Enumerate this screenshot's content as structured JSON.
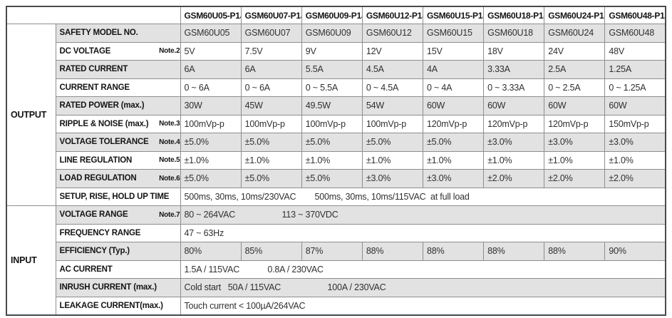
{
  "page": {
    "background": "#ffffff"
  },
  "table": {
    "stripe_color": "#e2e2e2",
    "grid_color": "#8e8e8e",
    "frame_color": "#4a4a4a",
    "corner_label": "",
    "models": [
      "GSM60U05-P1J",
      "GSM60U07-P1J",
      "GSM60U09-P1J",
      "GSM60U12-P1J",
      "GSM60U15-P1J",
      "GSM60U18-P1J",
      "GSM60U24-P1J",
      "GSM60U48-P1J"
    ],
    "sections": [
      {
        "name": "OUTPUT",
        "rows": [
          {
            "label": "SAFETY MODEL NO.",
            "note": "",
            "shade": true,
            "values": [
              "GSM60U05",
              "GSM60U07",
              "GSM60U09",
              "GSM60U12",
              "GSM60U15",
              "GSM60U18",
              "GSM60U24",
              "GSM60U48"
            ]
          },
          {
            "label": "DC VOLTAGE",
            "note": "Note.2",
            "shade": false,
            "values": [
              "5V",
              "7.5V",
              "9V",
              "12V",
              "15V",
              "18V",
              "24V",
              "48V"
            ]
          },
          {
            "label": "RATED CURRENT",
            "note": "",
            "shade": true,
            "values": [
              "6A",
              "6A",
              "5.5A",
              "4.5A",
              "4A",
              "3.33A",
              "2.5A",
              "1.25A"
            ]
          },
          {
            "label": "CURRENT RANGE",
            "note": "",
            "shade": false,
            "values": [
              "0 ~ 6A",
              "0 ~ 6A",
              "0 ~ 5.5A",
              "0 ~ 4.5A",
              "0 ~ 4A",
              "0 ~ 3.33A",
              "0 ~ 2.5A",
              "0 ~ 1.25A"
            ]
          },
          {
            "label": "RATED POWER (max.)",
            "note": "",
            "shade": true,
            "values": [
              "30W",
              "45W",
              "49.5W",
              "54W",
              "60W",
              "60W",
              "60W",
              "60W"
            ]
          },
          {
            "label": "RIPPLE & NOISE (max.)",
            "note": "Note.3",
            "shade": false,
            "values": [
              "100mVp-p",
              "100mVp-p",
              "100mVp-p",
              "100mVp-p",
              "120mVp-p",
              "120mVp-p",
              "120mVp-p",
              "150mVp-p"
            ]
          },
          {
            "label": "VOLTAGE TOLERANCE",
            "note": "Note.4",
            "shade": true,
            "values": [
              "±5.0%",
              "±5.0%",
              "±5.0%",
              "±5.0%",
              "±5.0%",
              "±3.0%",
              "±3.0%",
              "±3.0%"
            ]
          },
          {
            "label": "LINE REGULATION",
            "note": "Note.5",
            "shade": false,
            "values": [
              "±1.0%",
              "±1.0%",
              "±1.0%",
              "±1.0%",
              "±1.0%",
              "±1.0%",
              "±1.0%",
              "±1.0%"
            ]
          },
          {
            "label": "LOAD REGULATION",
            "note": "Note.6",
            "shade": true,
            "values": [
              "±5.0%",
              "±5.0%",
              "±5.0%",
              "±3.0%",
              "±3.0%",
              "±2.0%",
              "±2.0%",
              "±2.0%"
            ]
          },
          {
            "label": "SETUP, RISE, HOLD UP TIME",
            "note": "",
            "shade": false,
            "span": "500ms, 30ms, 10ms/230VAC        500ms, 30ms, 10ms/115VAC  at full load"
          }
        ]
      },
      {
        "name": "INPUT",
        "rows": [
          {
            "label": "VOLTAGE RANGE",
            "note": "Note.7",
            "shade": true,
            "span": "80 ~ 264VAC                    113 ~ 370VDC"
          },
          {
            "label": "FREQUENCY RANGE",
            "note": "",
            "shade": false,
            "span": "47 ~ 63Hz"
          },
          {
            "label": "EFFICIENCY (Typ.)",
            "note": "",
            "shade": true,
            "values": [
              "80%",
              "85%",
              "87%",
              "88%",
              "88%",
              "88%",
              "88%",
              "90%"
            ]
          },
          {
            "label": "AC CURRENT",
            "note": "",
            "shade": false,
            "span": "1.5A / 115VAC            0.8A / 230VAC"
          },
          {
            "label": "INRUSH CURRENT (max.)",
            "note": "",
            "shade": true,
            "span": "Cold start   50A / 115VAC                    100A / 230VAC"
          },
          {
            "label": "LEAKAGE CURRENT(max.)",
            "note": "",
            "shade": false,
            "span": "Touch current < 100µA/264VAC"
          }
        ]
      }
    ]
  }
}
